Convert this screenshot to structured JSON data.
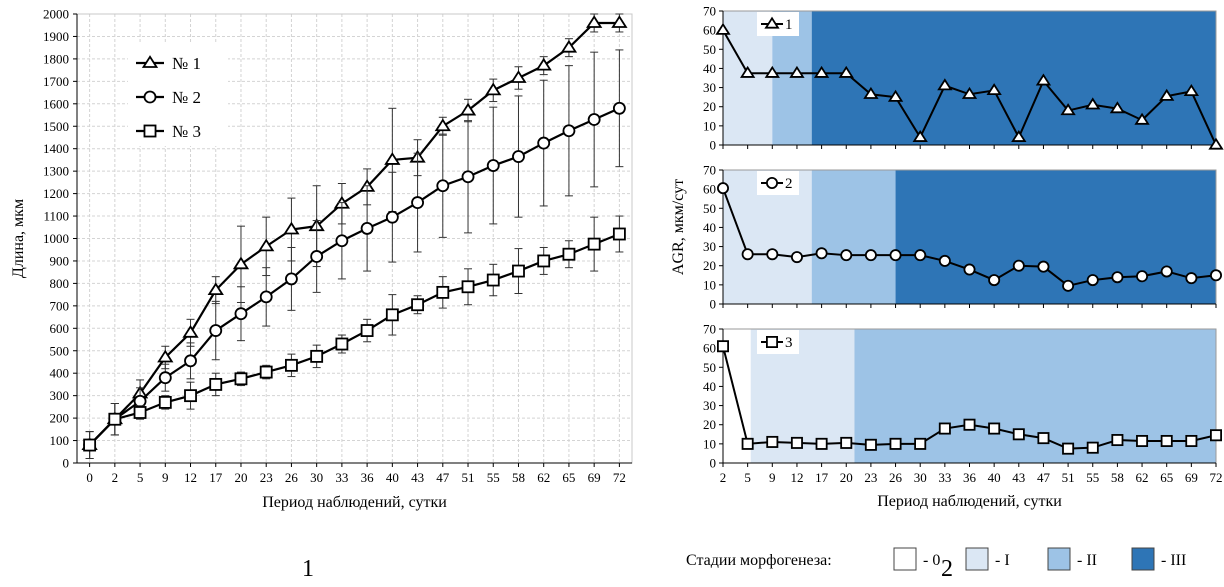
{
  "chart_data": [
    {
      "type": "line",
      "panel_label": "1",
      "xlabel": "Период наблюдений, сутки",
      "ylabel": "Длина, мкм",
      "ylim": [
        0,
        2000
      ],
      "y_ticks": [
        0,
        100,
        200,
        300,
        400,
        500,
        600,
        700,
        800,
        900,
        1000,
        1100,
        1200,
        1300,
        1400,
        1500,
        1600,
        1700,
        1800,
        1900,
        2000
      ],
      "grid": true,
      "legend_position": "top-left",
      "x": [
        0,
        2,
        5,
        9,
        12,
        17,
        20,
        23,
        26,
        30,
        33,
        36,
        40,
        43,
        47,
        51,
        55,
        58,
        62,
        65,
        69,
        72
      ],
      "series": [
        {
          "name": "№ 1",
          "marker": "triangle",
          "values": [
            80,
            195,
            310,
            470,
            580,
            770,
            885,
            965,
            1040,
            1055,
            1155,
            1230,
            1350,
            1360,
            1500,
            1570,
            1660,
            1715,
            1770,
            1850,
            1960,
            1960
          ],
          "error": [
            60,
            70,
            60,
            50,
            60,
            60,
            170,
            130,
            140,
            180,
            90,
            80,
            230,
            80,
            40,
            50,
            50,
            50,
            40,
            40,
            40,
            40
          ]
        },
        {
          "name": "№ 2",
          "marker": "circle",
          "values": [
            80,
            195,
            275,
            380,
            455,
            590,
            665,
            740,
            820,
            920,
            990,
            1045,
            1095,
            1160,
            1235,
            1275,
            1325,
            1365,
            1425,
            1480,
            1530,
            1580
          ],
          "error": [
            60,
            70,
            60,
            60,
            80,
            130,
            120,
            130,
            140,
            160,
            170,
            190,
            200,
            220,
            230,
            250,
            260,
            270,
            280,
            290,
            300,
            260
          ]
        },
        {
          "name": "№ 3",
          "marker": "square",
          "values": [
            80,
            195,
            225,
            270,
            300,
            350,
            375,
            405,
            435,
            475,
            530,
            590,
            660,
            705,
            760,
            785,
            815,
            855,
            900,
            930,
            975,
            1020
          ],
          "error": [
            60,
            70,
            30,
            30,
            60,
            50,
            30,
            30,
            50,
            50,
            40,
            50,
            90,
            40,
            70,
            80,
            70,
            100,
            60,
            60,
            120,
            80
          ]
        }
      ]
    },
    {
      "type": "line",
      "panel_label": "2",
      "xlabel": "Период наблюдений, сутки",
      "ylabel": "AGR, мкм/сут",
      "ylim": [
        0,
        70
      ],
      "y_ticks": [
        0,
        10,
        20,
        30,
        40,
        50,
        60,
        70
      ],
      "x": [
        2,
        5,
        9,
        12,
        17,
        20,
        23,
        26,
        30,
        33,
        36,
        40,
        43,
        47,
        51,
        55,
        58,
        62,
        65,
        69,
        72
      ],
      "stage_legend_title": "Стадии морфогенеза:",
      "stages": [
        {
          "label": "- 0",
          "color": "#ffffff"
        },
        {
          "label": "- I",
          "color": "#dbe7f4"
        },
        {
          "label": "- II",
          "color": "#9dc3e6"
        },
        {
          "label": "- III",
          "color": "#2e75b6"
        }
      ],
      "subplots": [
        {
          "name": "1",
          "marker": "triangle",
          "values": [
            60,
            37.5,
            37.5,
            37.5,
            37.5,
            37.5,
            26.5,
            25,
            4,
            31,
            26.5,
            28.5,
            4,
            33.5,
            18,
            21,
            19,
            13,
            25.5,
            28,
            0
          ],
          "bands": [
            {
              "from": 2,
              "to": 9,
              "stage": 1
            },
            {
              "from": 9,
              "to": 15,
              "stage": 2
            },
            {
              "from": 15,
              "to": 72,
              "stage": 3
            }
          ]
        },
        {
          "name": "2",
          "marker": "circle",
          "values": [
            60.5,
            26,
            26,
            24.5,
            26.5,
            25.5,
            25.5,
            25.5,
            25.5,
            22.5,
            18,
            12.5,
            20,
            19.5,
            9.5,
            12.5,
            14,
            14.5,
            17,
            13.5,
            15
          ],
          "bands": [
            {
              "from": 2,
              "to": 15,
              "stage": 1
            },
            {
              "from": 15,
              "to": 26,
              "stage": 2
            },
            {
              "from": 26,
              "to": 72,
              "stage": 3
            }
          ]
        },
        {
          "name": "3",
          "marker": "square",
          "values": [
            61,
            10,
            11,
            10.5,
            10,
            10.5,
            9.5,
            10,
            10,
            18,
            20,
            18,
            15,
            13,
            7.5,
            8,
            12,
            11.5,
            11.5,
            11.5,
            14.5
          ],
          "bands": [
            {
              "from": 2,
              "to": 5.5,
              "stage": 0
            },
            {
              "from": 5.5,
              "to": 21,
              "stage": 1
            },
            {
              "from": 21,
              "to": 72,
              "stage": 2
            }
          ]
        }
      ]
    }
  ]
}
